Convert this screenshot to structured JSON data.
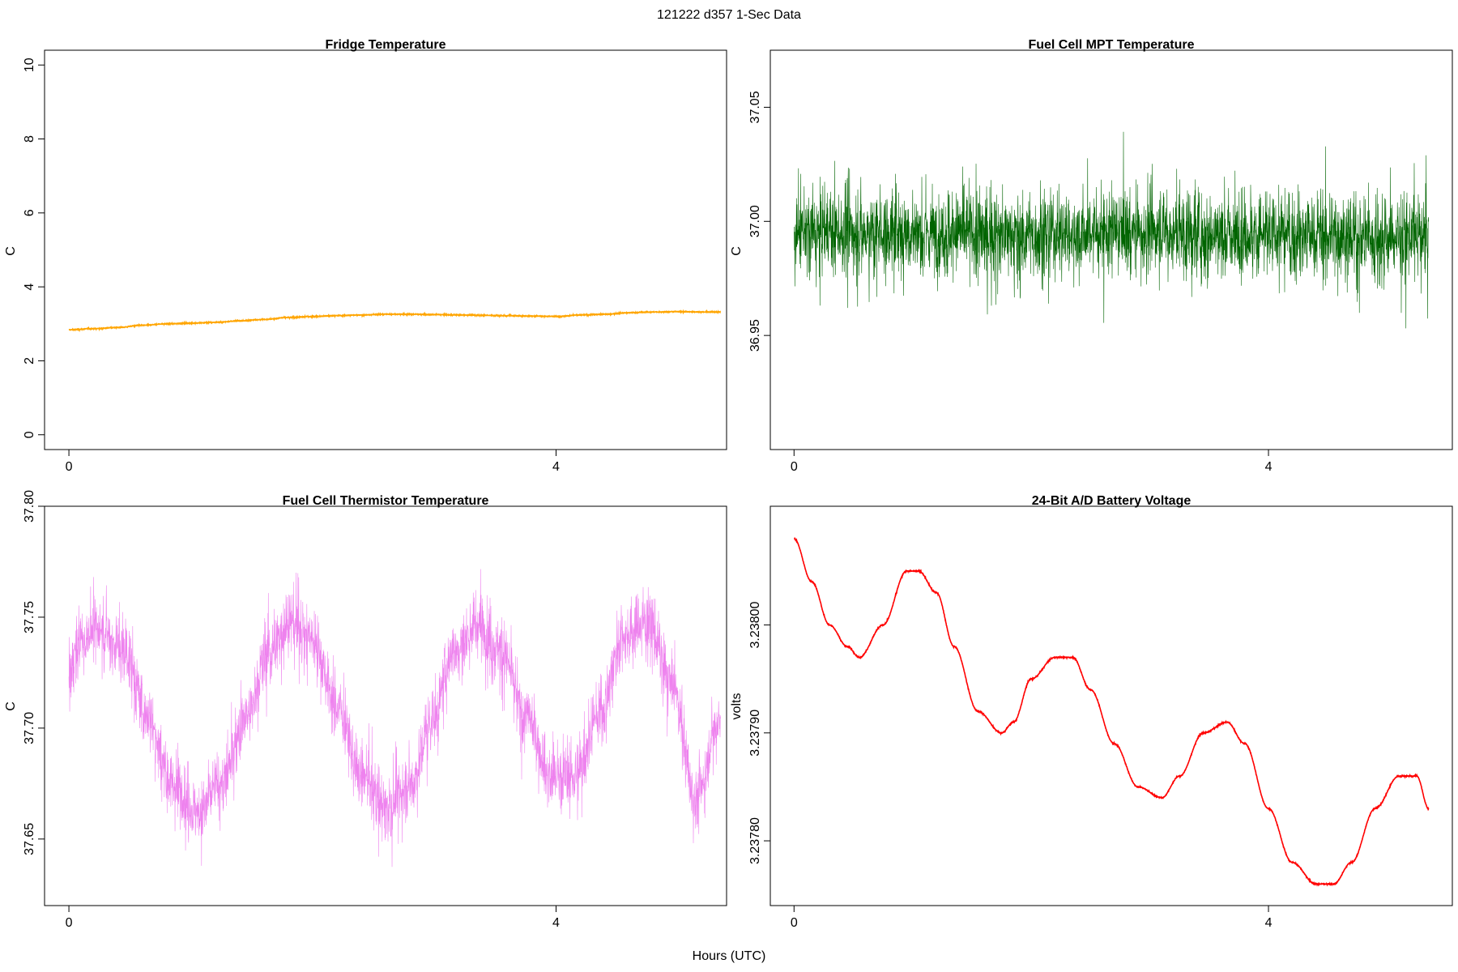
{
  "figure": {
    "suptitle": "121222   d357   1-Sec Data",
    "xlabel": "Hours (UTC)"
  },
  "chart_data": [
    {
      "type": "line",
      "title": "Fridge Temperature",
      "xlabel": "",
      "ylabel": "C",
      "xlim": [
        -0.2,
        5.4
      ],
      "ylim": [
        -0.4,
        10.4
      ],
      "xticks": [
        0,
        4
      ],
      "yticks": [
        0,
        2,
        4,
        6,
        8,
        10
      ],
      "ytick_decimals": 0,
      "color": "#ffa500",
      "noise": 0.01,
      "band": 0.04,
      "series": [
        {
          "x": [
            0,
            0.2,
            0.4,
            0.6,
            0.8,
            1.0,
            1.2,
            1.4,
            1.6,
            1.8,
            2.0,
            2.2,
            2.4,
            2.6,
            2.8,
            3.0,
            3.2,
            3.4,
            3.6,
            3.8,
            4.0,
            4.2,
            4.4,
            4.6,
            4.8,
            5.0,
            5.2,
            5.35
          ],
          "y": [
            2.84,
            2.87,
            2.9,
            2.96,
            3.0,
            3.02,
            3.04,
            3.08,
            3.12,
            3.17,
            3.2,
            3.22,
            3.24,
            3.26,
            3.26,
            3.25,
            3.24,
            3.23,
            3.22,
            3.21,
            3.2,
            3.24,
            3.26,
            3.3,
            3.32,
            3.33,
            3.32,
            3.32
          ]
        }
      ]
    },
    {
      "type": "line",
      "title": "Fuel Cell MPT Temperature",
      "xlabel": "",
      "ylabel": "C",
      "xlim": [
        -0.2,
        5.55
      ],
      "ylim": [
        36.9,
        37.075
      ],
      "xticks": [
        0,
        4
      ],
      "yticks": [
        36.95,
        37.0,
        37.05
      ],
      "ytick_decimals": 2,
      "color": "#006400",
      "noise": 0.016,
      "band": 0.028,
      "series": [
        {
          "x": [
            0,
            1,
            2,
            3,
            4,
            5,
            5.35
          ],
          "y": [
            36.995,
            36.995,
            36.994,
            36.995,
            36.994,
            36.993,
            36.994
          ]
        }
      ]
    },
    {
      "type": "line",
      "title": "Fuel Cell Thermistor Temperature",
      "xlabel": "",
      "ylabel": "C",
      "xlim": [
        -0.2,
        5.4
      ],
      "ylim": [
        37.62,
        37.8
      ],
      "xticks": [
        0,
        4
      ],
      "yticks": [
        37.65,
        37.7,
        37.75,
        37.8
      ],
      "ytick_decimals": 2,
      "color": "#ee82ee",
      "noise": 0.013,
      "band": 0.022,
      "series": [
        {
          "x": [
            0,
            0.1,
            0.25,
            0.45,
            0.65,
            0.85,
            1.05,
            1.25,
            1.45,
            1.65,
            1.8,
            2.0,
            2.2,
            2.4,
            2.6,
            2.8,
            3.0,
            3.15,
            3.35,
            3.55,
            3.75,
            3.95,
            4.15,
            4.35,
            4.55,
            4.75,
            4.95,
            5.15,
            5.35
          ],
          "y": [
            37.725,
            37.74,
            37.745,
            37.735,
            37.705,
            37.675,
            37.662,
            37.675,
            37.705,
            37.735,
            37.748,
            37.74,
            37.71,
            37.678,
            37.665,
            37.675,
            37.705,
            37.735,
            37.745,
            37.735,
            37.705,
            37.68,
            37.678,
            37.705,
            37.742,
            37.748,
            37.72,
            37.668,
            37.705
          ]
        }
      ]
    },
    {
      "type": "line",
      "title": "24-Bit A/D Battery Voltage",
      "xlabel": "",
      "ylabel": "volts",
      "xlim": [
        -0.2,
        5.55
      ],
      "ylim": [
        3.23774,
        3.23811
      ],
      "xticks": [
        0,
        4
      ],
      "yticks": [
        3.2378,
        3.2379,
        3.238
      ],
      "ytick_decimals": 5,
      "color": "#ff0000",
      "noise": 4e-07,
      "band": 8e-07,
      "series": [
        {
          "x": [
            0,
            0.15,
            0.3,
            0.45,
            0.55,
            0.75,
            0.95,
            1.05,
            1.2,
            1.35,
            1.55,
            1.75,
            1.85,
            2.0,
            2.2,
            2.35,
            2.5,
            2.7,
            2.9,
            3.1,
            3.25,
            3.45,
            3.65,
            3.8,
            4.0,
            4.2,
            4.4,
            4.55,
            4.7,
            4.9,
            5.1,
            5.25,
            5.35
          ],
          "y": [
            3.23808,
            3.23804,
            3.238,
            3.23798,
            3.23797,
            3.238,
            3.23805,
            3.23805,
            3.23803,
            3.23798,
            3.23792,
            3.2379,
            3.23791,
            3.23795,
            3.23797,
            3.23797,
            3.23794,
            3.23789,
            3.23785,
            3.23784,
            3.23786,
            3.2379,
            3.23791,
            3.23789,
            3.23783,
            3.23778,
            3.23776,
            3.23776,
            3.23778,
            3.23783,
            3.23786,
            3.23786,
            3.23783
          ]
        }
      ]
    }
  ]
}
